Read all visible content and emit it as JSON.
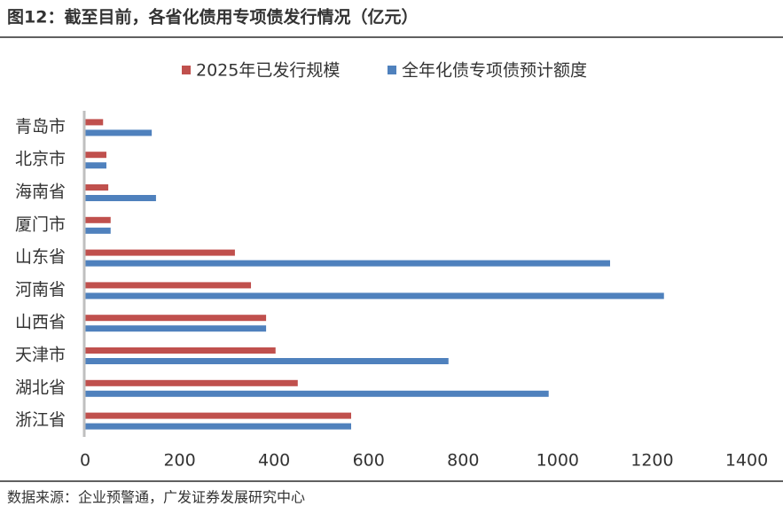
{
  "chart_data": {
    "type": "hbar",
    "title": "图12：截至目前，各省化债用专项债发行情况（亿元）",
    "source": "数据来源：企业预警通，广发证券发展研究中心",
    "categories": [
      "青岛市",
      "北京市",
      "海南省",
      "厦门市",
      "山东省",
      "河南省",
      "山西省",
      "天津市",
      "湖北省",
      "浙江省"
    ],
    "series": [
      {
        "name": "2025年已发行规模",
        "color": "#c0504d",
        "values": [
          38,
          45,
          49,
          54,
          317,
          351,
          383,
          403,
          450,
          563
        ]
      },
      {
        "name": "全年化债专项债预计额度",
        "color": "#4f81bd",
        "values": [
          141,
          45,
          150,
          54,
          1111,
          1225,
          383,
          769,
          981,
          563
        ]
      }
    ],
    "xlim": [
      0,
      1400
    ],
    "xticks": [
      0,
      200,
      400,
      600,
      800,
      1000,
      1200,
      1400
    ],
    "legend": "top",
    "grid": false
  }
}
